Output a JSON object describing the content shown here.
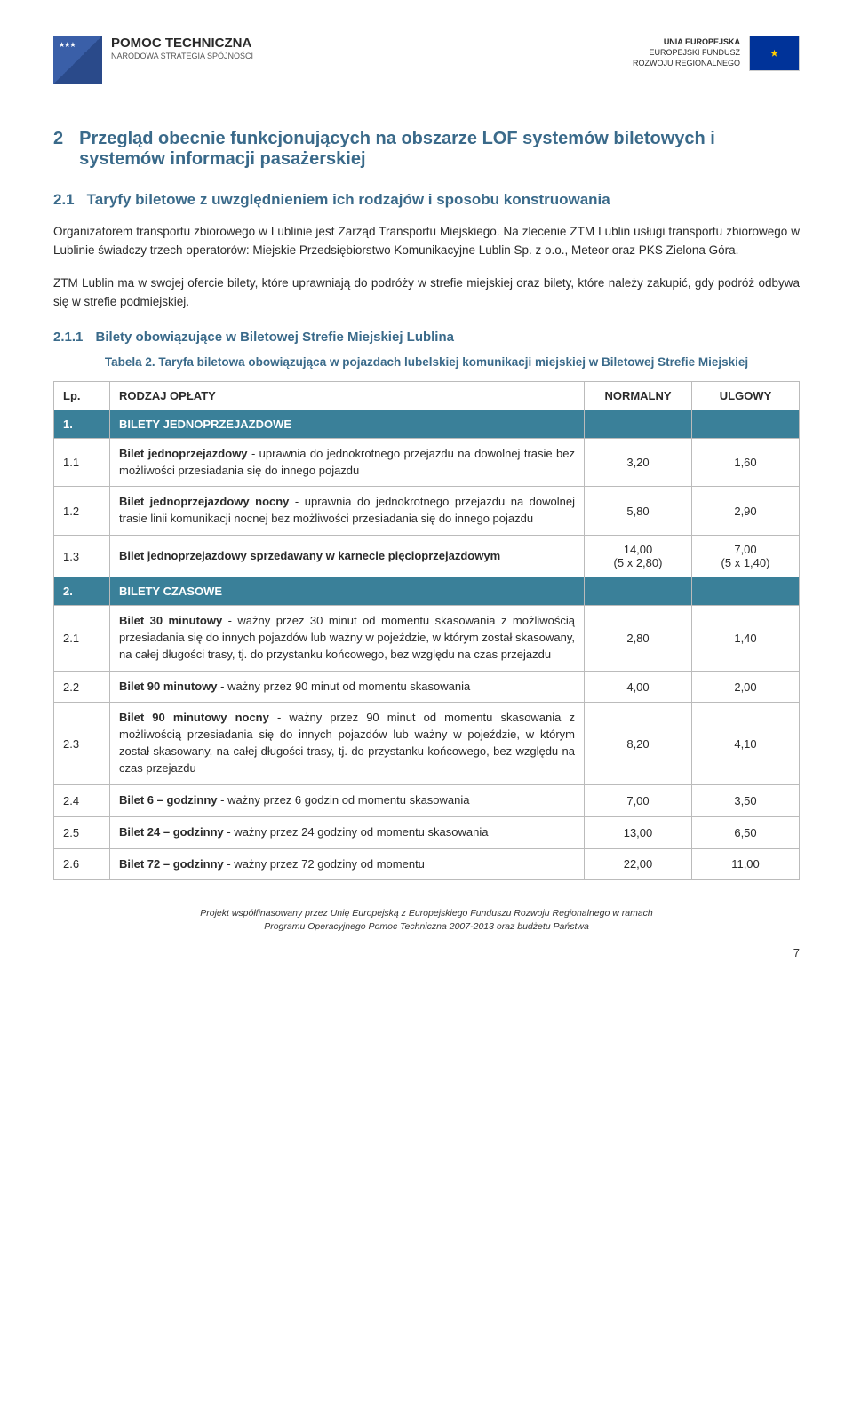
{
  "logos": {
    "left": {
      "line1": "POMOC TECHNICZNA",
      "line2": "NARODOWA STRATEGIA SPÓJNOŚCI"
    },
    "right": {
      "line1": "UNIA EUROPEJSKA",
      "line2": "EUROPEJSKI FUNDUSZ",
      "line3": "ROZWOJU REGIONALNEGO"
    }
  },
  "h1": {
    "num": "2",
    "text": "Przegląd obecnie funkcjonujących na obszarze LOF systemów biletowych i systemów informacji pasażerskiej"
  },
  "h2": {
    "num": "2.1",
    "text": "Taryfy biletowe z uwzględnieniem ich rodzajów i sposobu konstruowania"
  },
  "para1": "Organizatorem transportu zbiorowego w Lublinie jest Zarząd Transportu Miejskiego. Na zlecenie ZTM Lublin usługi transportu zbiorowego w Lublinie świadczy trzech operatorów: Miejskie Przedsiębiorstwo Komunikacyjne Lublin Sp. z o.o., Meteor oraz PKS Zielona Góra.",
  "para2": "ZTM Lublin ma w swojej ofercie bilety, które uprawniają do podróży w strefie miejskiej oraz bilety, które należy zakupić, gdy podróż odbywa się w strefie podmiejskiej.",
  "h3": {
    "num": "2.1.1",
    "text": "Bilety obowiązujące w Biletowej Strefie Miejskiej Lublina"
  },
  "caption": "Tabela 2. Taryfa biletowa obowiązująca w pojazdach lubelskiej komunikacji miejskiej w Biletowej Strefie Miejskiej",
  "table": {
    "headers": {
      "lp": "Lp.",
      "desc": "RODZAJ OPŁATY",
      "normal": "NORMALNY",
      "reduced": "ULGOWY"
    },
    "section1": {
      "lp": "1.",
      "title": "BILETY JEDNOPRZEJAZDOWE"
    },
    "rows1": [
      {
        "lp": "1.1",
        "bold": "Bilet jednoprzejazdowy",
        "rest": " - uprawnia do jednokrotnego przejazdu na dowolnej trasie bez możliwości przesiadania się do innego pojazdu",
        "normal": "3,20",
        "reduced": "1,60"
      },
      {
        "lp": "1.2",
        "bold": "Bilet jednoprzejazdowy nocny",
        "rest": " - uprawnia do jednokrotnego przejazdu na dowolnej trasie linii komunikacji nocnej bez możliwości przesiadania się do innego pojazdu",
        "normal": "5,80",
        "reduced": "2,90"
      },
      {
        "lp": "1.3",
        "bold": "Bilet jednoprzejazdowy sprzedawany w karnecie pięcioprzejazdowym",
        "rest": "",
        "normal": "14,00\n(5 x 2,80)",
        "reduced": "7,00\n(5 x 1,40)"
      }
    ],
    "section2": {
      "lp": "2.",
      "title": "BILETY CZASOWE"
    },
    "rows2": [
      {
        "lp": "2.1",
        "bold": "Bilet 30 minutowy",
        "rest": " - ważny przez 30 minut od momentu skasowania z możliwością przesiadania się do innych pojazdów lub ważny w pojeździe, w którym został skasowany, na całej długości trasy, tj. do przystanku końcowego, bez względu na czas przejazdu",
        "normal": "2,80",
        "reduced": "1,40"
      },
      {
        "lp": "2.2",
        "bold": "Bilet 90 minutowy",
        "rest": " - ważny przez 90 minut od momentu skasowania",
        "normal": "4,00",
        "reduced": "2,00"
      },
      {
        "lp": "2.3",
        "bold": "Bilet 90 minutowy nocny",
        "rest": " - ważny przez 90 minut od momentu skasowania z możliwością przesiadania się do innych pojazdów lub ważny w pojeździe, w którym został skasowany, na całej długości trasy, tj. do przystanku końcowego, bez względu na czas przejazdu",
        "normal": "8,20",
        "reduced": "4,10"
      },
      {
        "lp": "2.4",
        "bold": "Bilet 6 – godzinny",
        "rest": " - ważny przez 6 godzin od momentu skasowania",
        "normal": "7,00",
        "reduced": "3,50"
      },
      {
        "lp": "2.5",
        "bold": "Bilet 24 – godzinny",
        "rest": " - ważny przez 24 godziny od momentu skasowania",
        "normal": "13,00",
        "reduced": "6,50"
      },
      {
        "lp": "2.6",
        "bold": "Bilet 72 – godzinny",
        "rest": " - ważny przez 72 godziny od momentu",
        "normal": "22,00",
        "reduced": "11,00"
      }
    ]
  },
  "footer": {
    "line1": "Projekt współfinasowany przez Unię Europejską z Europejskiego Funduszu Rozwoju Regionalnego w ramach",
    "line2": "Programu Operacyjnego Pomoc Techniczna 2007-2013 oraz budżetu Państwa"
  },
  "pagenum": "7",
  "colors": {
    "heading": "#3a6a8a",
    "section_bg": "#3a8099",
    "section_text": "#ffffff",
    "border": "#bbbbbb"
  }
}
